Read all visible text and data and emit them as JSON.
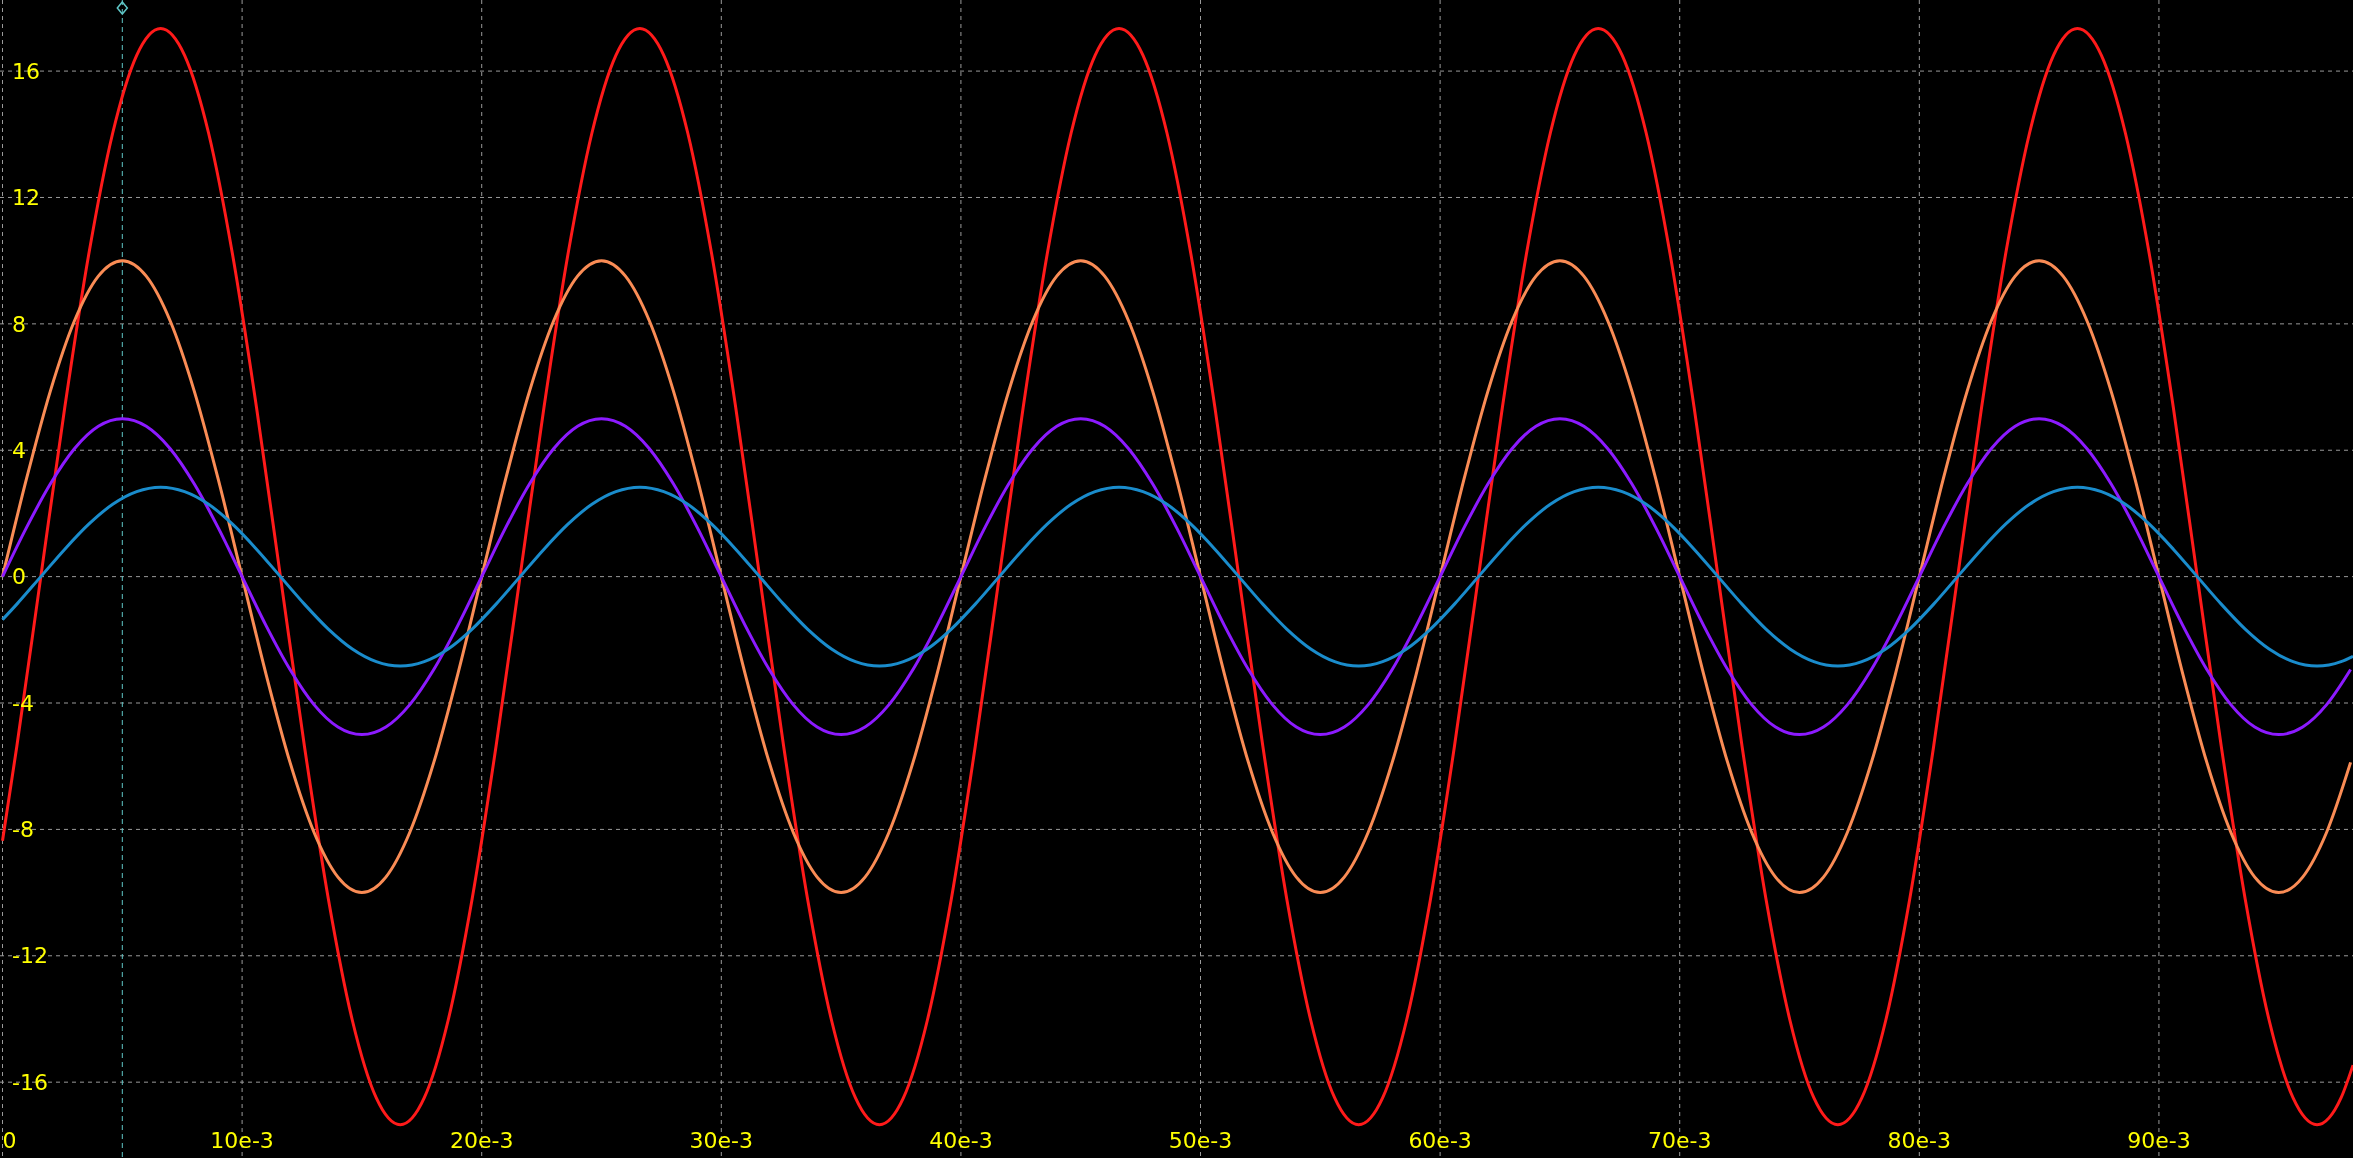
{
  "chart_data": {
    "type": "line",
    "x": [
      0,
      0.001,
      0.002,
      0.003,
      0.004,
      0.005,
      0.006,
      0.007,
      0.008,
      0.009,
      0.01,
      0.011,
      0.012,
      0.013,
      0.014,
      0.015,
      0.016,
      0.017,
      0.018,
      0.019,
      0.02,
      0.021,
      0.022,
      0.023,
      0.024,
      0.025,
      0.026,
      0.027,
      0.028,
      0.029,
      0.03,
      0.031,
      0.032,
      0.033,
      0.034,
      0.035,
      0.036,
      0.037,
      0.038,
      0.039,
      0.04,
      0.041,
      0.042,
      0.043,
      0.044,
      0.045,
      0.046,
      0.047,
      0.048,
      0.049,
      0.05,
      0.051,
      0.052,
      0.053,
      0.054,
      0.055,
      0.056,
      0.057,
      0.058,
      0.059,
      0.06,
      0.061,
      0.062,
      0.063,
      0.064,
      0.065,
      0.066,
      0.067,
      0.068,
      0.069,
      0.07,
      0.071,
      0.072,
      0.073,
      0.074,
      0.075,
      0.076,
      0.077,
      0.078,
      0.079,
      0.08,
      0.081,
      0.082,
      0.083,
      0.084,
      0.085,
      0.086,
      0.087,
      0.088,
      0.089,
      0.09,
      0.091,
      0.092,
      0.093,
      0.094,
      0.095,
      0.096,
      0.097,
      0.098
    ],
    "series": [
      {
        "color": "#ff1a1a",
        "x": [
          0,
          0.0006,
          0.0016,
          0.0026,
          0.0036,
          0.0046,
          0.0056,
          0.0066,
          0.0076,
          0.0086,
          0.0096,
          0.0106,
          0.0116,
          0.0126,
          0.0136,
          0.0146,
          0.0156,
          0.0166,
          0.0176,
          0.0186,
          0.0196,
          0.0206,
          0.0216,
          0.0226,
          0.0236,
          0.0246,
          0.0256,
          0.0266,
          0.0276,
          0.0286,
          0.0296,
          0.0306,
          0.0316,
          0.0326,
          0.0336,
          0.0346,
          0.0356,
          0.0366,
          0.0376,
          0.0386,
          0.0396,
          0.0406,
          0.0416,
          0.0426,
          0.0436,
          0.0446,
          0.0456,
          0.0466,
          0.0476,
          0.0486,
          0.0496,
          0.0506,
          0.0516,
          0.0526,
          0.0536,
          0.0546,
          0.0556,
          0.0566,
          0.0576,
          0.0586,
          0.0596,
          0.0606,
          0.0616,
          0.0626,
          0.0636,
          0.0646,
          0.0656,
          0.0666,
          0.0676,
          0.0686,
          0.0696,
          0.0706,
          0.0716,
          0.0726,
          0.0736,
          0.0746,
          0.0756,
          0.0766,
          0.0776,
          0.0786,
          0.0796,
          0.0806,
          0.0816,
          0.0826,
          0.0836,
          0.0846,
          0.0856,
          0.0866,
          0.0876,
          0.0886,
          0.0896,
          0.0906,
          0.0916,
          0.0926,
          0.0936,
          0.0946,
          0.0956,
          0.0966,
          0.0976,
          0.0981
        ],
        "values": [
          -8.36,
          -5.36,
          0,
          5.36,
          10.2,
          14.04,
          16.5,
          17.35,
          16.5,
          14.04,
          10.2,
          5.36,
          0,
          -5.36,
          -10.2,
          -14.04,
          -16.5,
          -17.35,
          -16.5,
          -14.04,
          -10.2,
          -5.36,
          0,
          5.36,
          10.2,
          14.04,
          16.5,
          17.35,
          16.5,
          14.04,
          10.2,
          5.36,
          0,
          -5.36,
          -10.2,
          -14.04,
          -16.5,
          -17.35,
          -16.5,
          -14.04,
          -10.2,
          -5.36,
          0,
          5.36,
          10.2,
          14.04,
          16.5,
          17.35,
          16.5,
          14.04,
          10.2,
          5.36,
          0,
          -5.36,
          -10.2,
          -14.04,
          -16.5,
          -17.35,
          -16.5,
          -14.04,
          -10.2,
          -5.36,
          0,
          5.36,
          10.2,
          14.04,
          16.5,
          17.35,
          16.5,
          14.04,
          10.2,
          5.36,
          0,
          -5.36,
          -10.2,
          -14.04,
          -16.5,
          -17.35,
          -16.5,
          -14.04,
          -10.2,
          -5.36,
          0,
          5.36,
          10.2,
          14.04,
          16.5,
          17.35,
          16.5,
          14.04,
          10.2,
          5.36,
          0,
          -5.36,
          -10.2,
          -14.04,
          -16.5,
          -17.35,
          -16.5,
          -15.46
        ]
      },
      {
        "color": "#fa8c55",
        "values": [
          0,
          3.09,
          5.88,
          8.09,
          9.51,
          10,
          9.51,
          8.09,
          5.88,
          3.09,
          0,
          -3.09,
          -5.88,
          -8.09,
          -9.51,
          -10,
          -9.51,
          -8.09,
          -5.88,
          -3.09,
          0,
          3.09,
          5.88,
          8.09,
          9.51,
          10,
          9.51,
          8.09,
          5.88,
          3.09,
          0,
          -3.09,
          -5.88,
          -8.09,
          -9.51,
          -10,
          -9.51,
          -8.09,
          -5.88,
          -3.09,
          0,
          3.09,
          5.88,
          8.09,
          9.51,
          10,
          9.51,
          8.09,
          5.88,
          3.09,
          0,
          -3.09,
          -5.88,
          -8.09,
          -9.51,
          -10,
          -9.51,
          -8.09,
          -5.88,
          -3.09,
          0,
          3.09,
          5.88,
          8.09,
          9.51,
          10,
          9.51,
          8.09,
          5.88,
          3.09,
          0,
          -3.09,
          -5.88,
          -8.09,
          -9.51,
          -10,
          -9.51,
          -8.09,
          -5.88,
          -3.09,
          0,
          3.09,
          5.88,
          8.09,
          9.51,
          10,
          9.51,
          8.09,
          5.88,
          3.09,
          0,
          -3.09,
          -5.88,
          -8.09,
          -9.51,
          -10,
          -9.51,
          -8.09,
          -5.88
        ]
      },
      {
        "color": "#8c1aff",
        "values": [
          0,
          1.55,
          2.94,
          4.05,
          4.76,
          5,
          4.76,
          4.05,
          2.94,
          1.55,
          0,
          -1.55,
          -2.94,
          -4.05,
          -4.76,
          -5,
          -4.76,
          -4.05,
          -2.94,
          -1.55,
          0,
          1.55,
          2.94,
          4.05,
          4.76,
          5,
          4.76,
          4.05,
          2.94,
          1.55,
          0,
          -1.55,
          -2.94,
          -4.05,
          -4.76,
          -5,
          -4.76,
          -4.05,
          -2.94,
          -1.55,
          0,
          1.55,
          2.94,
          4.05,
          4.76,
          5,
          4.76,
          4.05,
          2.94,
          1.55,
          0,
          -1.55,
          -2.94,
          -4.05,
          -4.76,
          -5,
          -4.76,
          -4.05,
          -2.94,
          -1.55,
          0,
          1.55,
          2.94,
          4.05,
          4.76,
          5,
          4.76,
          4.05,
          2.94,
          1.55,
          0,
          -1.55,
          -2.94,
          -4.05,
          -4.76,
          -5,
          -4.76,
          -4.05,
          -2.94,
          -1.55,
          0,
          1.55,
          2.94,
          4.05,
          4.76,
          5,
          4.76,
          4.05,
          2.94,
          1.55,
          0,
          -1.55,
          -2.94,
          -4.05,
          -4.76,
          -5,
          -4.76,
          -4.05,
          -2.94
        ]
      },
      {
        "color": "#1a8ccc",
        "x": [
          0,
          0.0006,
          0.0016,
          0.0026,
          0.0036,
          0.0046,
          0.0056,
          0.0066,
          0.0076,
          0.0086,
          0.0096,
          0.0106,
          0.0116,
          0.0126,
          0.0136,
          0.0146,
          0.0156,
          0.0166,
          0.0176,
          0.0186,
          0.0196,
          0.0206,
          0.0216,
          0.0226,
          0.0236,
          0.0246,
          0.0256,
          0.0266,
          0.0276,
          0.0286,
          0.0296,
          0.0306,
          0.0316,
          0.0326,
          0.0336,
          0.0346,
          0.0356,
          0.0366,
          0.0376,
          0.0386,
          0.0396,
          0.0406,
          0.0416,
          0.0426,
          0.0436,
          0.0446,
          0.0456,
          0.0466,
          0.0476,
          0.0486,
          0.0496,
          0.0506,
          0.0516,
          0.0526,
          0.0536,
          0.0546,
          0.0556,
          0.0566,
          0.0576,
          0.0586,
          0.0596,
          0.0606,
          0.0616,
          0.0626,
          0.0636,
          0.0646,
          0.0656,
          0.0666,
          0.0676,
          0.0686,
          0.0696,
          0.0706,
          0.0716,
          0.0726,
          0.0736,
          0.0746,
          0.0756,
          0.0766,
          0.0776,
          0.0786,
          0.0796,
          0.0806,
          0.0816,
          0.0826,
          0.0836,
          0.0846,
          0.0856,
          0.0866,
          0.0876,
          0.0886,
          0.0896,
          0.0906,
          0.0916,
          0.0926,
          0.0936,
          0.0946,
          0.0956,
          0.0966,
          0.0976,
          0.0981
        ],
        "values": [
          -1.36,
          -0.87,
          0,
          0.87,
          1.66,
          2.29,
          2.69,
          2.83,
          2.69,
          2.29,
          1.66,
          0.87,
          0,
          -0.87,
          -1.66,
          -2.29,
          -2.69,
          -2.83,
          -2.69,
          -2.29,
          -1.66,
          -0.87,
          0,
          0.87,
          1.66,
          2.29,
          2.69,
          2.83,
          2.69,
          2.29,
          1.66,
          0.87,
          0,
          -0.87,
          -1.66,
          -2.29,
          -2.69,
          -2.83,
          -2.69,
          -2.29,
          -1.66,
          -0.87,
          0,
          0.87,
          1.66,
          2.29,
          2.69,
          2.83,
          2.69,
          2.29,
          1.66,
          0.87,
          0,
          -0.87,
          -1.66,
          -2.29,
          -2.69,
          -2.83,
          -2.69,
          -2.29,
          -1.66,
          -0.87,
          0,
          0.87,
          1.66,
          2.29,
          2.69,
          2.83,
          2.69,
          2.29,
          1.66,
          0.87,
          0,
          -0.87,
          -1.66,
          -2.29,
          -2.69,
          -2.83,
          -2.69,
          -2.29,
          -1.66,
          -0.87,
          0,
          0.87,
          1.66,
          2.29,
          2.69,
          2.83,
          2.69,
          2.29,
          1.66,
          0.87,
          0,
          -0.87,
          -1.66,
          -2.29,
          -2.69,
          -2.83,
          -2.69,
          -2.52
        ]
      }
    ],
    "xlim": [
      0,
      0.0981
    ],
    "ylim": [
      -18.4,
      18.25
    ],
    "xticks": [
      0,
      {
        "value": 0.01,
        "label": "10e-3"
      },
      {
        "value": 0.02,
        "label": "20e-3"
      },
      {
        "value": 0.03,
        "label": "30e-3"
      },
      {
        "value": 0.04,
        "label": "40e-3"
      },
      {
        "value": 0.05,
        "label": "50e-3"
      },
      {
        "value": 0.06,
        "label": "60e-3"
      },
      {
        "value": 0.07,
        "label": "70e-3"
      },
      {
        "value": 0.08,
        "label": "80e-3"
      },
      {
        "value": 0.09,
        "label": "90e-3"
      }
    ],
    "yticks": [
      -16,
      -12,
      -8,
      -4,
      0,
      4,
      8,
      12,
      16
    ],
    "grid": true,
    "ref_lines": [
      {
        "axis": "x",
        "value": 0.005,
        "label": null,
        "color": "#5fc7c7",
        "line_style": "dashed"
      }
    ]
  }
}
